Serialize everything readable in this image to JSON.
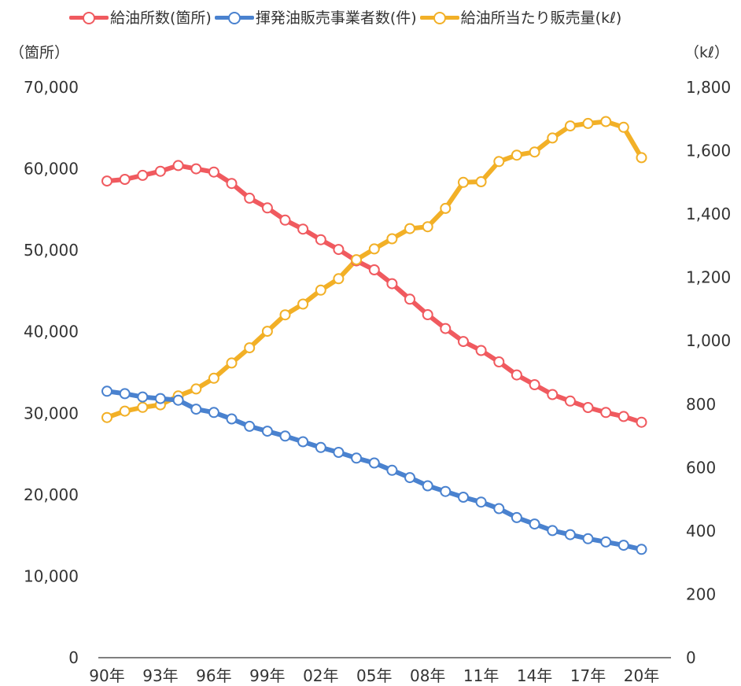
{
  "chart_data": {
    "type": "line",
    "left_axis_unit": "（箇所）",
    "right_axis_unit": "（kℓ）",
    "x": [
      "90年",
      "91年",
      "92年",
      "93年",
      "94年",
      "95年",
      "96年",
      "97年",
      "98年",
      "99年",
      "00年",
      "01年",
      "02年",
      "03年",
      "04年",
      "05年",
      "06年",
      "07年",
      "08年",
      "09年",
      "10年",
      "11年",
      "12年",
      "13年",
      "14年",
      "15年",
      "16年",
      "17年",
      "18年",
      "19年",
      "20年"
    ],
    "x_tick_labels": [
      "90年",
      "93年",
      "96年",
      "99年",
      "02年",
      "05年",
      "08年",
      "11年",
      "14年",
      "17年",
      "20年"
    ],
    "y_left_ticks": [
      "0",
      "10,000",
      "20,000",
      "30,000",
      "40,000",
      "50,000",
      "60,000",
      "70,000"
    ],
    "y_right_ticks": [
      "0",
      "200",
      "400",
      "600",
      "800",
      "1,000",
      "1,200",
      "1,400",
      "1,600",
      "1,800"
    ],
    "ylim_left": [
      0,
      70000
    ],
    "ylim_right": [
      0,
      1800
    ],
    "grid": false,
    "legend_position": "top",
    "series": [
      {
        "name": "給油所数(箇所)",
        "axis": "left",
        "color": "#f05a5f",
        "values": [
          58500,
          58700,
          59200,
          59700,
          60400,
          60000,
          59600,
          58200,
          56400,
          55200,
          53700,
          52600,
          51300,
          50100,
          48700,
          47600,
          45900,
          44000,
          42100,
          40400,
          38800,
          37700,
          36300,
          34700,
          33500,
          32300,
          31500,
          30700,
          30100,
          29600,
          28900
        ]
      },
      {
        "name": "揮発油販売事業者数(件)",
        "axis": "left",
        "color": "#4a82cf",
        "values": [
          32700,
          32400,
          32000,
          31800,
          31600,
          30500,
          30100,
          29300,
          28400,
          27800,
          27200,
          26500,
          25800,
          25200,
          24500,
          23900,
          23000,
          22100,
          21100,
          20400,
          19700,
          19100,
          18300,
          17200,
          16400,
          15600,
          15100,
          14600,
          14200,
          13800,
          13300
        ]
      },
      {
        "name": "給油所当たり販売量(kℓ)",
        "axis": "right",
        "color": "#f2b027",
        "values": [
          758,
          778,
          790,
          798,
          826,
          848,
          882,
          930,
          978,
          1030,
          1082,
          1116,
          1160,
          1196,
          1256,
          1290,
          1322,
          1354,
          1360,
          1418,
          1500,
          1502,
          1566,
          1586,
          1596,
          1640,
          1678,
          1686,
          1692,
          1674,
          1578
        ]
      }
    ]
  }
}
